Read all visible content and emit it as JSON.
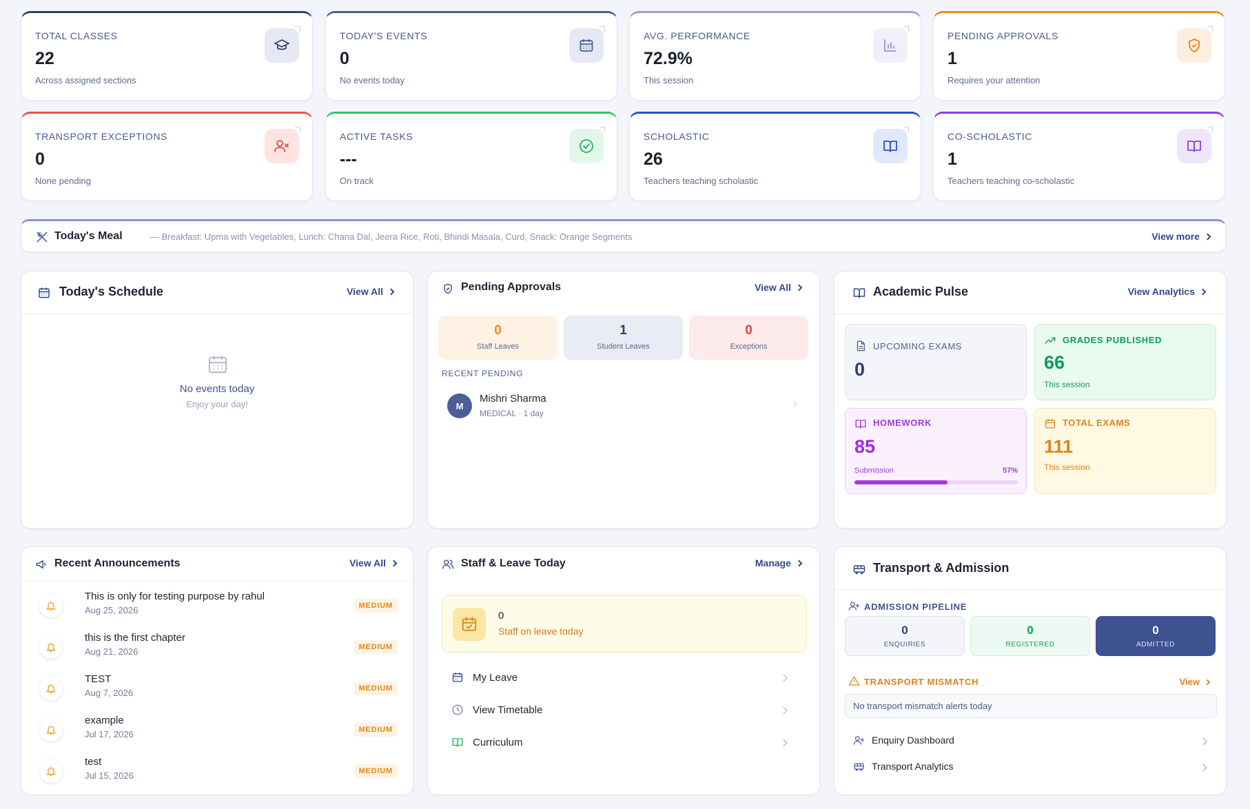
{
  "stats": [
    {
      "label": "TOTAL CLASSES",
      "value": "22",
      "sub": "Across assigned sections",
      "accent": "#2e3f72",
      "icon": "graduation-cap-icon"
    },
    {
      "label": "TODAY'S EVENTS",
      "value": "0",
      "sub": "No events today",
      "accent": "#4b5f96",
      "icon": "calendar-icon"
    },
    {
      "label": "AVG. PERFORMANCE",
      "value": "72.9%",
      "sub": "This session",
      "accent": "#a49ad8",
      "icon": "bar-chart-icon"
    },
    {
      "label": "PENDING APPROVALS",
      "value": "1",
      "sub": "Requires your attention",
      "accent": "#f08a24",
      "icon": "shield-check-icon"
    },
    {
      "label": "TRANSPORT EXCEPTIONS",
      "value": "0",
      "sub": "None pending",
      "accent": "#e8504a",
      "icon": "user-x-icon"
    },
    {
      "label": "ACTIVE TASKS",
      "value": "---",
      "sub": "On track",
      "accent": "#2fc36a",
      "icon": "check-circle-icon"
    },
    {
      "label": "SCHOLASTIC",
      "value": "26",
      "sub": "Teachers teaching scholastic",
      "accent": "#2751c8",
      "icon": "book-open-icon"
    },
    {
      "label": "CO-SCHOLASTIC",
      "value": "1",
      "sub": "Teachers teaching co-scholastic",
      "accent": "#8a3fe0",
      "icon": "book-open-icon"
    }
  ],
  "meal": {
    "title": "Today's Meal",
    "text": "— Breakfast: Upma with Vegetables, Lunch: Chana Dal, Jeera Rice, Roti, Bhindi Masala, Curd, Snack: Orange Segments",
    "more": "View more"
  },
  "schedule": {
    "title": "Today's Schedule",
    "link": "View All",
    "empty_title": "No events today",
    "empty_sub": "Enjoy your day!"
  },
  "approvals": {
    "title": "Pending Approvals",
    "link": "View All",
    "boxes": [
      {
        "value": "0",
        "label": "Staff Leaves"
      },
      {
        "value": "1",
        "label": "Student Leaves"
      },
      {
        "value": "0",
        "label": "Exceptions"
      }
    ],
    "recent_label": "RECENT PENDING",
    "recent": {
      "initial": "M",
      "name": "Mishri Sharma",
      "meta": "MEDICAL · 1 day"
    }
  },
  "pulse": {
    "title": "Academic Pulse",
    "link": "View Analytics",
    "upcoming": {
      "label": "UPCOMING EXAMS",
      "value": "0"
    },
    "grades": {
      "label": "GRADES PUBLISHED",
      "value": "66",
      "sub": "This session"
    },
    "homework": {
      "label": "HOMEWORK",
      "value": "85",
      "sub": "Submission",
      "pct_label": "57%",
      "pct": 0.57
    },
    "total": {
      "label": "TOTAL EXAMS",
      "value": "111",
      "sub": "This session"
    }
  },
  "announcements": {
    "title": "Recent Announcements",
    "link": "View All",
    "items": [
      {
        "title": "This is only for testing purpose by rahul",
        "date": "Aug 25, 2026",
        "badge": "MEDIUM"
      },
      {
        "title": "this is the first chapter",
        "date": "Aug 21, 2026",
        "badge": "MEDIUM"
      },
      {
        "title": "TEST",
        "date": "Aug 7, 2026",
        "badge": "MEDIUM"
      },
      {
        "title": "example",
        "date": "Jul 17, 2026",
        "badge": "MEDIUM"
      },
      {
        "title": "test",
        "date": "Jul 15, 2026",
        "badge": "MEDIUM"
      }
    ]
  },
  "staff": {
    "title": "Staff & Leave Today",
    "link": "Manage",
    "leave_count": "0",
    "leave_text": "Staff on leave today",
    "links": [
      "My Leave",
      "View Timetable",
      "Curriculum"
    ]
  },
  "transport": {
    "title": "Transport & Admission",
    "pipeline_label": "ADMISSION PIPELINE",
    "pipeline": [
      {
        "value": "0",
        "label": "ENQUIRIES"
      },
      {
        "value": "0",
        "label": "REGISTERED"
      },
      {
        "value": "0",
        "label": "ADMITTED"
      }
    ],
    "mismatch_label": "TRANSPORT MISMATCH",
    "mismatch_link": "View",
    "mismatch_text": "No transport mismatch alerts today",
    "links": [
      "Enquiry Dashboard",
      "Transport Analytics"
    ]
  }
}
